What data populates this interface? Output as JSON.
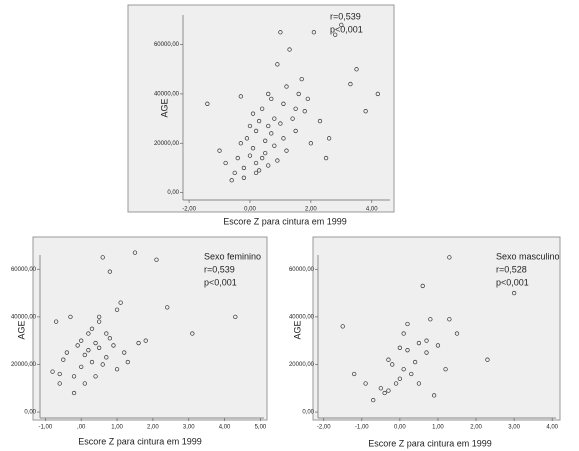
{
  "chart_data": [
    {
      "type": "scatter",
      "color": "#333333",
      "x_label": "Escore Z para cintura em 1999",
      "y_label": "AGE",
      "annotations": [
        "r=0,539",
        "p<0,001"
      ],
      "xlim": [
        -2.2,
        4.6
      ],
      "ylim": [
        -3000,
        72000
      ],
      "xticks": [
        {
          "value": -2,
          "label": "-2,00"
        },
        {
          "value": 0,
          "label": "0,00"
        },
        {
          "value": 2,
          "label": "2,00"
        },
        {
          "value": 4,
          "label": "4,00"
        }
      ],
      "yticks": [
        {
          "value": 0,
          "label": "0,00"
        },
        {
          "value": 20000,
          "label": "20000,00"
        },
        {
          "value": 40000,
          "label": "40000,00"
        },
        {
          "value": 60000,
          "label": "60000,00"
        }
      ],
      "x": [
        -1.4,
        -1,
        -0.8,
        -0.6,
        -0.5,
        -0.4,
        -0.3,
        -0.3,
        -0.2,
        -0.1,
        0,
        0,
        0.1,
        0.1,
        0.2,
        0.2,
        0.3,
        0.3,
        0.4,
        0.4,
        0.5,
        0.5,
        0.6,
        0.6,
        0.7,
        0.7,
        0.8,
        0.8,
        0.9,
        0.9,
        1,
        1,
        1.1,
        1.1,
        1.2,
        1.2,
        1.3,
        1.4,
        1.5,
        1.6,
        1.7,
        1.8,
        1.9,
        2,
        2.1,
        2.3,
        2.5,
        2.6,
        2.8,
        3,
        3.3,
        3.5,
        3.8,
        4.2,
        0.2,
        -0.2,
        0.6,
        1.5
      ],
      "y": [
        36000,
        17000,
        12000,
        5000,
        8000,
        14000,
        39000,
        20000,
        10000,
        22000,
        27000,
        15000,
        32000,
        18000,
        12000,
        25000,
        9000,
        29000,
        14000,
        34000,
        21000,
        16000,
        27000,
        11000,
        38000,
        24000,
        30000,
        19000,
        52000,
        13000,
        65000,
        28000,
        36000,
        22000,
        43000,
        17000,
        58000,
        30000,
        25000,
        40000,
        46000,
        33000,
        38000,
        20000,
        65000,
        29000,
        14000,
        22000,
        64000,
        68000,
        44000,
        50000,
        33000,
        40000,
        8000,
        6000,
        40000,
        34000
      ]
    },
    {
      "type": "scatter",
      "color": "#333333",
      "x_label": "Escore Z para cintura em 1999",
      "y_label": "AGE",
      "annotations": [
        "Sexo feminino",
        "r=0,539",
        "p<0,001"
      ],
      "xlim": [
        -1.15,
        5.1
      ],
      "ylim": [
        -2500,
        66000
      ],
      "xticks": [
        {
          "value": -1,
          "label": "-1,00"
        },
        {
          "value": 0,
          "label": ",00"
        },
        {
          "value": 1,
          "label": "1,00"
        },
        {
          "value": 2,
          "label": "2,00"
        },
        {
          "value": 3,
          "label": "3,00"
        },
        {
          "value": 4,
          "label": "4,00"
        },
        {
          "value": 5,
          "label": "5,00"
        }
      ],
      "yticks": [
        {
          "value": 0,
          "label": "0,00"
        },
        {
          "value": 20000,
          "label": "20000,00"
        },
        {
          "value": 40000,
          "label": "40000,00"
        },
        {
          "value": 60000,
          "label": "60000,00"
        }
      ],
      "x": [
        -0.8,
        -0.7,
        -0.6,
        -0.5,
        -0.4,
        -0.3,
        -0.2,
        -0.2,
        -0.1,
        0,
        0,
        0.1,
        0.1,
        0.2,
        0.2,
        0.3,
        0.3,
        0.4,
        0.4,
        0.5,
        0.5,
        0.6,
        0.6,
        0.7,
        0.7,
        0.8,
        0.9,
        1,
        1,
        1.1,
        1.2,
        1.3,
        1.5,
        1.6,
        1.8,
        2.1,
        2.4,
        3.1,
        4.3,
        -0.6,
        0.5,
        0.8
      ],
      "y": [
        17000,
        38000,
        12000,
        22000,
        25000,
        40000,
        15000,
        8000,
        28000,
        19000,
        30000,
        24000,
        12000,
        33000,
        26000,
        21000,
        35000,
        15000,
        29000,
        38000,
        27000,
        65000,
        20000,
        23000,
        33000,
        59000,
        28000,
        43000,
        18000,
        46000,
        25000,
        21000,
        67000,
        29000,
        30000,
        64000,
        44000,
        33000,
        40000,
        16000,
        40000,
        31000
      ]
    },
    {
      "type": "scatter",
      "color": "#333333",
      "x_label": "Escore Z para cintura em 1999",
      "y_label": "AGE",
      "annotations": [
        "Sexo masculino",
        "r=0,528",
        "p<0,001"
      ],
      "xlim": [
        -2.15,
        4.1
      ],
      "ylim": [
        -2500,
        66000
      ],
      "xticks": [
        {
          "value": -2,
          "label": "-2,00"
        },
        {
          "value": -1,
          "label": "-1,00"
        },
        {
          "value": 0,
          "label": "0,00"
        },
        {
          "value": 1,
          "label": "1,00"
        },
        {
          "value": 2,
          "label": "2,00"
        },
        {
          "value": 3,
          "label": "3,00"
        },
        {
          "value": 4,
          "label": "4,00"
        }
      ],
      "yticks": [
        {
          "value": 0,
          "label": "0,00"
        },
        {
          "value": 20000,
          "label": "20000,00"
        },
        {
          "value": 40000,
          "label": "40000,00"
        },
        {
          "value": 60000,
          "label": "60000,00"
        }
      ],
      "x": [
        -1.5,
        -1.2,
        -0.9,
        -0.7,
        -0.5,
        -0.4,
        -0.3,
        -0.2,
        -0.1,
        0,
        0,
        0.1,
        0.1,
        0.2,
        0.2,
        0.3,
        0.4,
        0.5,
        0.6,
        0.7,
        0.8,
        0.9,
        1,
        1.2,
        1.3,
        1.3,
        1.5,
        2.3,
        3,
        -0.3,
        0.5,
        0.7
      ],
      "y": [
        36000,
        16000,
        12000,
        5000,
        10000,
        8000,
        22000,
        20000,
        12000,
        14000,
        27000,
        33000,
        18000,
        26000,
        37000,
        16000,
        21000,
        29000,
        53000,
        25000,
        39000,
        7000,
        28000,
        18000,
        65000,
        39000,
        33000,
        22000,
        50000,
        9000,
        12000,
        30000
      ]
    }
  ]
}
